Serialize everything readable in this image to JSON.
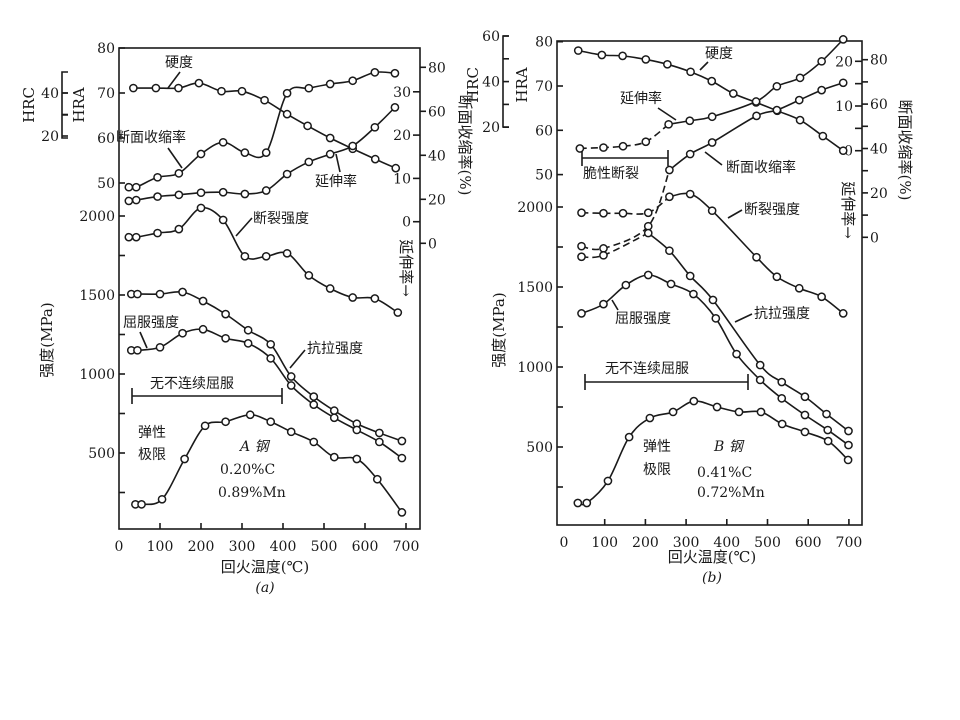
{
  "colors": {
    "ink": "#1a1a1a",
    "background": "#ffffff"
  },
  "chart_data": [
    {
      "type": "line",
      "panel_caption": "(a)",
      "xlabel": "回火温度(℃)",
      "xlim": [
        0,
        700
      ],
      "x_ticks": [
        0,
        100,
        200,
        300,
        400,
        500,
        600,
        700
      ],
      "ylabel_strength": "强度(MPa)",
      "ylabel_hrc": "HRC",
      "ylabel_hra": "HRA",
      "ylabel_ra": "断面收缩率(%)",
      "ylabel_elongation": "延伸率",
      "axes": {
        "strength": {
          "ticks": [
            500,
            1000,
            1500,
            2000
          ],
          "minor": [
            250,
            750,
            1250,
            1750
          ]
        },
        "HRA": {
          "ticks": [
            50,
            60,
            70,
            80
          ]
        },
        "HRC": {
          "ticks": [
            20,
            40
          ],
          "minor": [
            30
          ]
        },
        "elongation": {
          "ticks": [
            0,
            10,
            20,
            30
          ]
        },
        "RA": {
          "ticks": [
            0,
            20,
            40,
            60,
            80
          ]
        }
      },
      "series": [
        {
          "name": "硬度",
          "axis": "HRA",
          "x": [
            35,
            90,
            145,
            195,
            250,
            300,
            355,
            410,
            460,
            515,
            570,
            625,
            675
          ],
          "y": [
            71.1,
            71.1,
            71.1,
            72.2,
            70.4,
            70.4,
            68.4,
            65.3,
            62.7,
            60.0,
            57.6,
            55.3,
            53.3
          ]
        },
        {
          "name": "断面收缩率",
          "axis": "RA",
          "x": [
            24,
            42,
            94,
            146,
            200,
            254,
            307,
            359,
            410,
            463,
            515,
            570,
            624,
            673
          ],
          "y": [
            25.5,
            25.5,
            30,
            31.8,
            40.6,
            45.9,
            41.2,
            41.2,
            68.2,
            70.5,
            72.4,
            73.9,
            77.7,
            77.3
          ]
        },
        {
          "name": "延伸率",
          "axis": "elongation",
          "x": [
            24,
            42,
            94,
            146,
            200,
            254,
            307,
            359,
            410,
            463,
            515,
            570,
            624,
            673
          ],
          "y": [
            4.8,
            5.0,
            5.8,
            6.2,
            6.7,
            6.8,
            6.4,
            7.2,
            11.0,
            13.8,
            15.6,
            17.5,
            21.8,
            26.4
          ]
        },
        {
          "name": "断裂强度",
          "axis": "strength",
          "x": [
            24,
            42,
            94,
            146,
            200,
            254,
            307,
            359,
            410,
            463,
            515,
            570,
            624,
            680
          ],
          "y": [
            1866,
            1866,
            1892,
            1917,
            2051,
            1975,
            1745,
            1745,
            1764,
            1624,
            1541,
            1484,
            1478,
            1389
          ]
        },
        {
          "name": "抗拉强度",
          "axis": "strength",
          "x": [
            30,
            45,
            100,
            155,
            205,
            260,
            315,
            370,
            420,
            475,
            525,
            580,
            635,
            690
          ],
          "y": [
            1506,
            1506,
            1506,
            1519,
            1462,
            1379,
            1277,
            1188,
            984,
            857,
            768,
            685,
            627,
            576
          ]
        },
        {
          "name": "屈服强度",
          "axis": "strength",
          "x": [
            30,
            45,
            100,
            155,
            205,
            260,
            315,
            370,
            420,
            475,
            525,
            580,
            635,
            690
          ],
          "y": [
            1150,
            1150,
            1169,
            1258,
            1283,
            1226,
            1194,
            1099,
            927,
            806,
            723,
            646,
            570,
            468
          ]
        },
        {
          "name": "弹性极限",
          "axis": "strength",
          "x": [
            40,
            55,
            105,
            160,
            210,
            260,
            320,
            370,
            420,
            475,
            525,
            580,
            630,
            690
          ],
          "y": [
            175,
            175,
            207,
            462,
            672,
            698,
            742,
            698,
            634,
            570,
            474,
            462,
            334,
            124
          ]
        }
      ],
      "labels": {
        "hardness": "硬度",
        "ra": "断面收缩率",
        "elongation": "延伸率",
        "fracture": "断裂强度",
        "yield": "屈服强度",
        "tensile": "抗拉强度",
        "no_discontinuous_yield": "无不连续屈服",
        "elastic_1": "弹性",
        "elastic_2": "极限",
        "steel": "A 钢",
        "carbon": "0.20%C",
        "manganese": "0.89%Mn",
        "elong_arrow": "延伸率→"
      }
    },
    {
      "type": "line",
      "panel_caption": "(b)",
      "xlabel": "回火温度(℃)",
      "xlim": [
        0,
        700
      ],
      "x_ticks": [
        0,
        100,
        200,
        300,
        400,
        500,
        600,
        700
      ],
      "ylabel_strength": "强度(MPa)",
      "ylabel_hrc": "HRC",
      "ylabel_hra": "HRA",
      "ylabel_ra": "断面收缩率(%)",
      "ylabel_elongation": "延伸率",
      "axes": {
        "strength": {
          "ticks": [
            500,
            1000,
            1500,
            2000
          ],
          "minor": [
            250,
            750,
            1250,
            1750
          ]
        },
        "HRA": {
          "ticks": [
            50,
            60,
            70,
            80
          ]
        },
        "HRC": {
          "ticks": [
            20,
            40,
            60
          ],
          "minor": [
            30,
            50
          ]
        },
        "elongation": {
          "ticks": [
            0,
            10,
            20
          ],
          "minor": [
            5,
            15
          ]
        },
        "RA": {
          "ticks": [
            0,
            20,
            40,
            60,
            80
          ],
          "minor": [
            10,
            30,
            50,
            70
          ]
        }
      },
      "series": [
        {
          "name": "硬度",
          "axis": "HRA",
          "x": [
            35,
            93,
            144,
            201,
            254,
            311,
            363,
            416,
            472,
            524,
            580,
            636,
            686
          ],
          "y": [
            78.0,
            77.0,
            76.8,
            76.0,
            74.9,
            73.2,
            71.1,
            68.3,
            66.3,
            64.4,
            62.3,
            58.7,
            55.4
          ]
        },
        {
          "name": "延伸率",
          "axis": "elongation",
          "dashed_segments": 4,
          "x": [
            39,
            97,
            145,
            201,
            257,
            309,
            364,
            472,
            523,
            580,
            633,
            686
          ],
          "y": [
            0.5,
            0.7,
            1.0,
            2.0,
            5.9,
            6.7,
            7.6,
            11.0,
            14.4,
            16.3,
            20.0,
            24.9
          ]
        },
        {
          "name": "断面收缩率",
          "axis": "RA",
          "dashed_segments": 3,
          "x": [
            43,
            97,
            207,
            259,
            310,
            364,
            473,
            523,
            578,
            633,
            686
          ],
          "y": [
            -4,
            -5,
            5,
            30.3,
            37.5,
            42.7,
            54.7,
            57.3,
            61.8,
            66.3,
            69.6
          ]
        },
        {
          "name": "断裂强度",
          "axis": "strength",
          "dashed_segments": 4,
          "x": [
            43,
            97,
            145,
            207,
            259,
            310,
            364,
            473,
            523,
            578,
            633,
            686
          ],
          "y": [
            1964,
            1961,
            1961,
            1964,
            2064,
            2081,
            1977,
            1686,
            1564,
            1492,
            1439,
            1335
          ]
        },
        {
          "name": "抗拉强度",
          "axis": "strength",
          "dashed_segments": 2,
          "x": [
            43,
            97,
            207,
            259,
            310,
            366,
            482,
            535,
            592,
            645,
            699
          ],
          "y": [
            1689,
            1698,
            1837,
            1727,
            1569,
            1419,
            1012,
            906,
            814,
            706,
            600
          ]
        },
        {
          "name": "屈服强度",
          "axis": "strength",
          "x": [
            43,
            97,
            152,
            207,
            263,
            318,
            373,
            424,
            482,
            535,
            592,
            648,
            699
          ],
          "y": [
            1335,
            1393,
            1512,
            1575,
            1519,
            1456,
            1304,
            1081,
            919,
            804,
            700,
            606,
            512
          ]
        },
        {
          "name": "弹性极限",
          "axis": "strength",
          "x": [
            34,
            56,
            108,
            160,
            211,
            268,
            319,
            376,
            430,
            484,
            536,
            592,
            649,
            698
          ],
          "y": [
            150,
            150,
            288,
            562,
            681,
            719,
            787,
            750,
            719,
            719,
            644,
            594,
            537,
            419
          ]
        }
      ],
      "labels": {
        "hardness": "硬度",
        "ra": "断面收缩率",
        "elongation": "延伸率",
        "fracture": "断裂强度",
        "yield": "屈服强度",
        "tensile": "抗拉强度",
        "no_discontinuous_yield": "无不连续屈服",
        "brittle": "脆性断裂",
        "elastic_1": "弹性",
        "elastic_2": "极限",
        "steel": "B 钢",
        "carbon": "0.41%C",
        "manganese": "0.72%Mn",
        "elong_arrow": "延伸率→"
      }
    }
  ]
}
